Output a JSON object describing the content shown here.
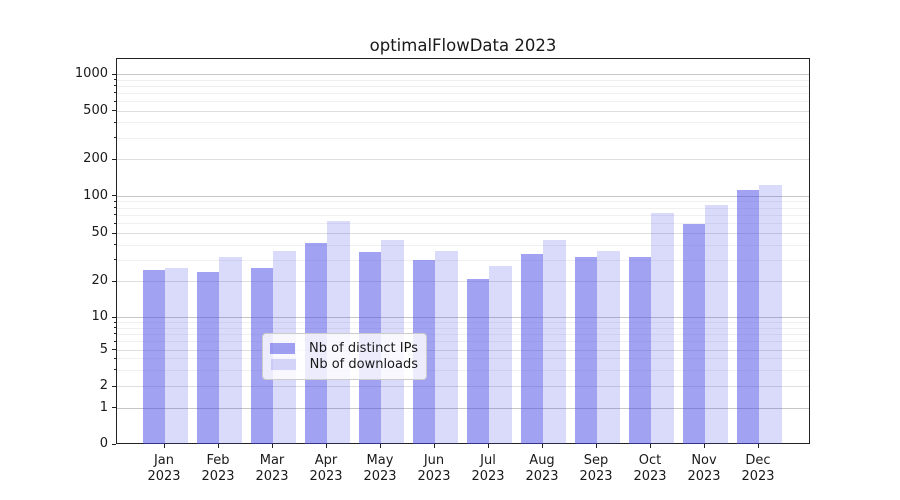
{
  "title": "optimalFlowData 2023",
  "chart_data": {
    "type": "bar",
    "title": "optimalFlowData 2023",
    "categories": [
      "Jan 2023",
      "Feb 2023",
      "Mar 2023",
      "Apr 2023",
      "May 2023",
      "Jun 2023",
      "Jul 2023",
      "Aug 2023",
      "Sep 2023",
      "Oct 2023",
      "Nov 2023",
      "Dec 2023"
    ],
    "series": [
      {
        "name": "Nb of distinct IPs",
        "values": [
          25,
          24,
          26,
          42,
          35,
          30,
          21,
          34,
          32,
          32,
          60,
          113
        ]
      },
      {
        "name": "Nb of downloads",
        "values": [
          26,
          32,
          36,
          63,
          44,
          36,
          27,
          44,
          36,
          73,
          85,
          124
        ]
      }
    ],
    "xlabel": "",
    "ylabel": "",
    "yscale": "symlog",
    "ylim": [
      0,
      1000
    ],
    "y_major_ticks": [
      0,
      1,
      2,
      5,
      10,
      20,
      50,
      100,
      200,
      500,
      1000
    ],
    "y_minor_ticks": [
      3,
      4,
      6,
      7,
      8,
      9,
      30,
      40,
      60,
      70,
      80,
      90,
      300,
      400,
      600,
      700,
      800,
      900
    ],
    "grid": "on",
    "legend_position": "lower center"
  },
  "colors": {
    "bar_distinct_ips": "rgba(70,70,230,0.5)",
    "bar_downloads": "rgba(70,70,230,0.2)",
    "grid_decade": "#c6c6c6",
    "grid_labeled": "#dedede",
    "grid_minor": "#f0f0f0",
    "spine": "#222222",
    "text": "#1a1a1a",
    "legend_border": "#cccccc"
  }
}
